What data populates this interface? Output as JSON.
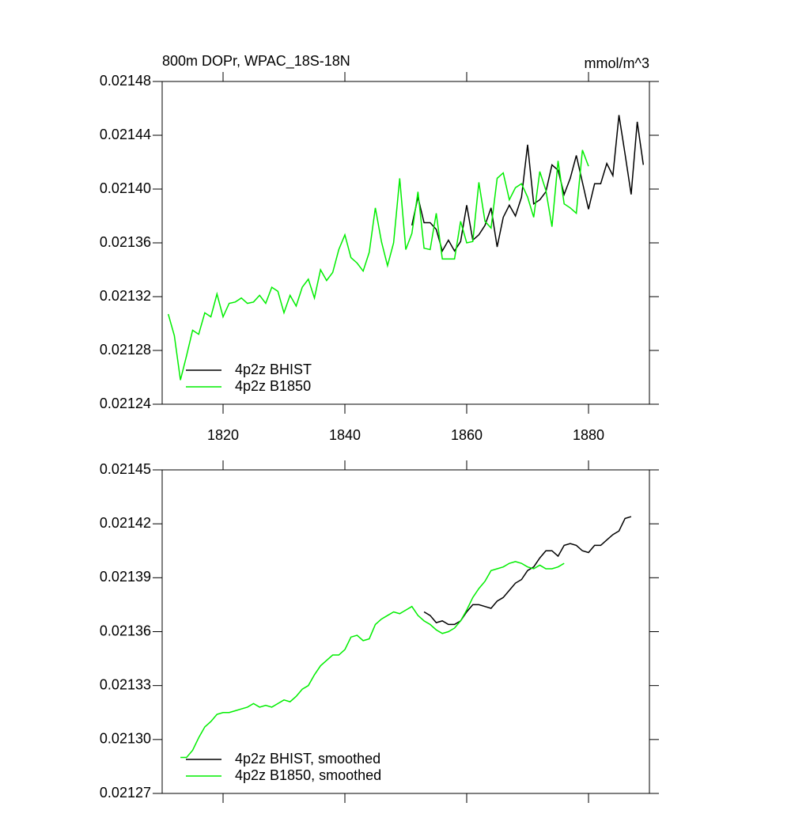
{
  "chart_data": [
    {
      "type": "line",
      "title": "800m DOPr, WPAC_18S-18N",
      "units": "mmol/m^3",
      "x": [
        1811,
        1812,
        1813,
        1814,
        1815,
        1816,
        1817,
        1818,
        1819,
        1820,
        1821,
        1822,
        1823,
        1824,
        1825,
        1826,
        1827,
        1828,
        1829,
        1830,
        1831,
        1832,
        1833,
        1834,
        1835,
        1836,
        1837,
        1838,
        1839,
        1840,
        1841,
        1842,
        1843,
        1844,
        1845,
        1846,
        1847,
        1848,
        1849,
        1850,
        1851,
        1852,
        1853,
        1854,
        1855,
        1856,
        1857,
        1858,
        1859,
        1860,
        1861,
        1862,
        1863,
        1864,
        1865,
        1866,
        1867,
        1868,
        1869,
        1870,
        1871,
        1872,
        1873,
        1874,
        1875,
        1876,
        1877,
        1878,
        1879,
        1880,
        1881,
        1882,
        1883,
        1884,
        1885,
        1886,
        1887,
        1888,
        1889
      ],
      "series": [
        {
          "name": "4p2z BHIST",
          "color": "#000000",
          "values": [
            null,
            null,
            null,
            null,
            null,
            null,
            null,
            null,
            null,
            null,
            null,
            null,
            null,
            null,
            null,
            null,
            null,
            null,
            null,
            null,
            null,
            null,
            null,
            null,
            null,
            null,
            null,
            null,
            null,
            null,
            null,
            null,
            null,
            null,
            null,
            null,
            null,
            null,
            null,
            null,
            0.021373,
            0.021394,
            0.021375,
            0.021375,
            0.02137,
            0.021354,
            0.021362,
            0.021354,
            0.021361,
            0.021388,
            0.021362,
            0.021366,
            0.021373,
            0.021386,
            0.021357,
            0.021379,
            0.021388,
            0.02138,
            0.021394,
            0.021433,
            0.021389,
            0.021392,
            0.021398,
            0.021418,
            0.021414,
            0.021396,
            0.021408,
            0.021425,
            0.021405,
            0.021385,
            0.021404,
            0.021404,
            0.021419,
            0.02141,
            0.021455,
            0.021426,
            0.021396,
            0.02145,
            0.021418
          ]
        },
        {
          "name": "4p2z B1850",
          "color": "#00ee00",
          "values": [
            0.021307,
            0.021291,
            0.021258,
            0.021276,
            0.021295,
            0.021292,
            0.021308,
            0.021305,
            0.021322,
            0.021305,
            0.021315,
            0.021316,
            0.021319,
            0.021315,
            0.021316,
            0.021321,
            0.021315,
            0.021327,
            0.021324,
            0.021308,
            0.021321,
            0.021313,
            0.021327,
            0.021333,
            0.021319,
            0.02134,
            0.021332,
            0.021338,
            0.021355,
            0.021366,
            0.021349,
            0.021345,
            0.021339,
            0.021353,
            0.021386,
            0.021361,
            0.021343,
            0.02136,
            0.021408,
            0.021355,
            0.021367,
            0.021398,
            0.021356,
            0.021355,
            0.021382,
            0.021348,
            0.021348,
            0.021348,
            0.021376,
            0.02136,
            0.021361,
            0.021405,
            0.021376,
            0.021371,
            0.021408,
            0.021412,
            0.021392,
            0.021401,
            0.021404,
            0.021394,
            0.021379,
            0.021413,
            0.021399,
            0.021372,
            0.021421,
            0.021389,
            0.021386,
            0.021382,
            0.021429,
            0.021417,
            null,
            null,
            null,
            null,
            null,
            null,
            null,
            null,
            null
          ]
        }
      ],
      "xlim": [
        1810,
        1890
      ],
      "xticks": [
        1820,
        1840,
        1860,
        1880
      ],
      "show_xtick_labels": true,
      "ylim": [
        0.02124,
        0.02148
      ],
      "yticks": [
        0.02124,
        0.02128,
        0.02132,
        0.02136,
        {
          "value": 0.0214,
          "label": "0.02140"
        },
        0.02144,
        0.02148
      ],
      "legend": "lower left"
    },
    {
      "type": "line",
      "x": [
        1813,
        1814,
        1815,
        1816,
        1817,
        1818,
        1819,
        1820,
        1821,
        1822,
        1823,
        1824,
        1825,
        1826,
        1827,
        1828,
        1829,
        1830,
        1831,
        1832,
        1833,
        1834,
        1835,
        1836,
        1837,
        1838,
        1839,
        1840,
        1841,
        1842,
        1843,
        1844,
        1845,
        1846,
        1847,
        1848,
        1849,
        1850,
        1851,
        1852,
        1853,
        1854,
        1855,
        1856,
        1857,
        1858,
        1859,
        1860,
        1861,
        1862,
        1863,
        1864,
        1865,
        1866,
        1867,
        1868,
        1869,
        1870,
        1871,
        1872,
        1873,
        1874,
        1875,
        1876,
        1877,
        1878,
        1879,
        1880,
        1881,
        1882,
        1883,
        1884,
        1885,
        1886,
        1887
      ],
      "series": [
        {
          "name": "4p2z BHIST, smoothed",
          "color": "#000000",
          "values": [
            null,
            null,
            null,
            null,
            null,
            null,
            null,
            null,
            null,
            null,
            null,
            null,
            null,
            null,
            null,
            null,
            null,
            null,
            null,
            null,
            null,
            null,
            null,
            null,
            null,
            null,
            null,
            null,
            null,
            null,
            null,
            null,
            null,
            null,
            null,
            null,
            null,
            null,
            null,
            null,
            0.021371,
            0.021369,
            0.021365,
            0.021366,
            0.021364,
            0.021364,
            0.021366,
            0.021371,
            0.021375,
            0.021375,
            0.021374,
            0.021373,
            0.021377,
            0.021379,
            0.021383,
            0.021387,
            0.021389,
            0.021394,
            0.021396,
            0.021401,
            0.021405,
            0.021405,
            0.021402,
            0.021408,
            0.021409,
            0.021408,
            0.021405,
            0.021404,
            0.021408,
            0.021408,
            0.021411,
            0.021414,
            0.021416,
            0.021423,
            0.021424
          ]
        },
        {
          "name": "4p2z B1850, smoothed",
          "color": "#00ee00",
          "values": [
            0.02129,
            0.02129,
            0.021294,
            0.021301,
            0.021307,
            0.02131,
            0.021314,
            0.021315,
            0.021315,
            0.021316,
            0.021317,
            0.021318,
            0.02132,
            0.021318,
            0.021319,
            0.021318,
            0.02132,
            0.021322,
            0.021321,
            0.021324,
            0.021328,
            0.02133,
            0.021336,
            0.021341,
            0.021344,
            0.021347,
            0.021347,
            0.02135,
            0.021357,
            0.021358,
            0.021355,
            0.021356,
            0.021364,
            0.021367,
            0.021369,
            0.021371,
            0.02137,
            0.021372,
            0.021374,
            0.021369,
            0.021366,
            0.021364,
            0.021361,
            0.021359,
            0.02136,
            0.021362,
            0.021366,
            0.021372,
            0.021379,
            0.021384,
            0.021388,
            0.021394,
            0.021395,
            0.021396,
            0.021398,
            0.021399,
            0.021398,
            0.021396,
            0.021395,
            0.021397,
            0.021395,
            0.021395,
            0.021396,
            0.021398,
            null,
            null,
            null,
            null,
            null,
            null,
            null,
            null,
            null,
            null,
            null
          ]
        }
      ],
      "xlim": [
        1810,
        1890
      ],
      "xticks": [
        1820,
        1840,
        1860,
        1880
      ],
      "show_xtick_labels": false,
      "ylim": [
        0.02127,
        0.02145
      ],
      "yticks": [
        0.02127,
        {
          "value": 0.0213,
          "label": "0.02130"
        },
        0.02133,
        0.02136,
        0.02139,
        0.02142,
        0.02145
      ],
      "legend": "lower left"
    }
  ]
}
